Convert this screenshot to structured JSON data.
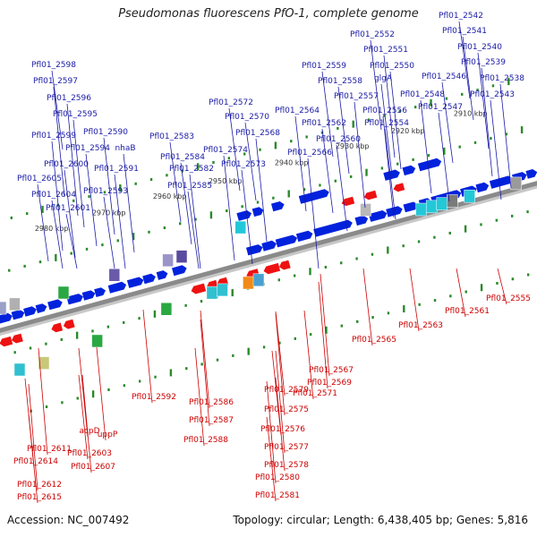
{
  "title": "Pseudomonas fluorescens PfO-1, complete genome",
  "footer": {
    "accession": "Accession: NC_007492",
    "summary": "Topology: circular; Length: 6,438,405 bp; Genes: 5,816"
  },
  "colors": {
    "forward_gene": "#0022dd",
    "reverse_gene": "#ee1111",
    "forward_label": "#1a1aa6",
    "reverse_label": "#cc0000",
    "backbone": "#8a8a8a",
    "tick": "#2a8a2a",
    "scale_label": "#333333"
  },
  "scale_ticks": [
    "2910 kbp",
    "2920 kbp",
    "2930 kbp",
    "2940 kbp",
    "2950 kbp",
    "2960 kbp",
    "2970 kbp",
    "2980 kbp"
  ],
  "forward_labels": [
    "Pfl01_2542",
    "Pfl01_2541",
    "Pfl01_2552",
    "Pfl01_2540",
    "Pfl01_2551",
    "Pfl01_2539",
    "Pfl01_2598",
    "Pfl01_2559",
    "glgA",
    "Pfl01_2550",
    "Pfl01_2538",
    "Pfl01_2597",
    "Pfl01_2546",
    "Pfl01_2558",
    "Pfl01_2548",
    "Pfl01_2543",
    "Pfl01_2557",
    "Pfl01_2596",
    "Pfl01_2572",
    "Pfl01_2547",
    "Pfl01_2564",
    "Pfl01_2556",
    "Pfl01_2595",
    "Pfl01_2570",
    "Pfl01_2562",
    "Pfl01_2554",
    "Pfl01_2590",
    "Pfl01_2568",
    "Pfl01_2599",
    "Pfl01_2583",
    "Pfl01_2560",
    "Pfl01_2594",
    "nhaB",
    "Pfl01_2574",
    "Pfl01_2566",
    "Pfl01_2584",
    "Pfl01_2600",
    "Pfl01_2573",
    "Pfl01_2591",
    "Pfl01_2582",
    "Pfl01_2605",
    "Pfl01_2585",
    "Pfl01_2593",
    "Pfl01_2604",
    "Pfl01_2601"
  ],
  "reverse_labels": [
    "Pfl01_2555",
    "Pfl01_2561",
    "Pfl01_2563",
    "Pfl01_2565",
    "Pfl01_2567",
    "Pfl01_2569",
    "Pfl01_2579",
    "Pfl01_2571",
    "Pfl01_2592",
    "Pfl01_2586",
    "Pfl01_2575",
    "Pfl01_2587",
    "Pfl01_2576",
    "acpD",
    "uppP",
    "Pfl01_2588",
    "Pfl01_2577",
    "Pfl01_2611",
    "Pfl01_2603",
    "Pfl01_2614",
    "Pfl01_2578",
    "Pfl01_2607",
    "Pfl01_2580",
    "Pfl01_2612",
    "Pfl01_2581",
    "Pfl01_2615"
  ]
}
